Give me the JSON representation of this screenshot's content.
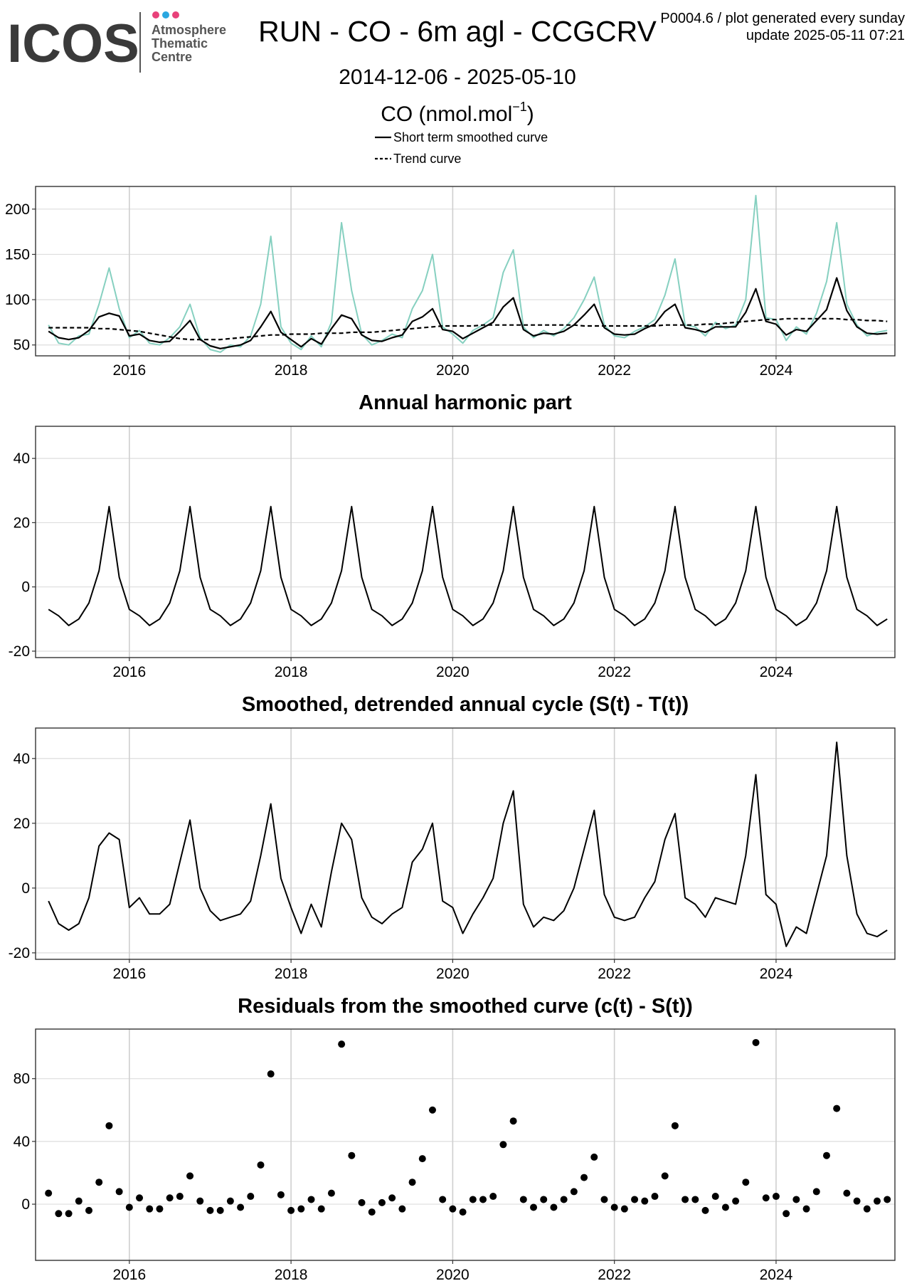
{
  "header": {
    "logo": "ICOS",
    "logo_lines": [
      "Atmosphere",
      "Thematic",
      "Centre"
    ],
    "title": "RUN - CO - 6m agl - CCGCRV",
    "note": "P0004.6 / plot generated every sunday",
    "update": "update  2025-05-11 07:21",
    "subtitle": "2014-12-06 - 2025-05-10"
  },
  "chart_data": [
    {
      "type": "line",
      "title_parts": [
        "CO (nmol.mol",
        "−1",
        ")"
      ],
      "x": [
        2015.0,
        2015.125,
        2015.25,
        2015.375,
        2015.5,
        2015.625,
        2015.75,
        2015.875,
        2016.0,
        2016.125,
        2016.25,
        2016.375,
        2016.5,
        2016.625,
        2016.75,
        2016.875,
        2017.0,
        2017.125,
        2017.25,
        2017.375,
        2017.5,
        2017.625,
        2017.75,
        2017.875,
        2018.0,
        2018.125,
        2018.25,
        2018.375,
        2018.5,
        2018.625,
        2018.75,
        2018.875,
        2019.0,
        2019.125,
        2019.25,
        2019.375,
        2019.5,
        2019.625,
        2019.75,
        2019.875,
        2020.0,
        2020.125,
        2020.25,
        2020.375,
        2020.5,
        2020.625,
        2020.75,
        2020.875,
        2021.0,
        2021.125,
        2021.25,
        2021.375,
        2021.5,
        2021.625,
        2021.75,
        2021.875,
        2022.0,
        2022.125,
        2022.25,
        2022.375,
        2022.5,
        2022.625,
        2022.75,
        2022.875,
        2023.0,
        2023.125,
        2023.25,
        2023.375,
        2023.5,
        2023.625,
        2023.75,
        2023.875,
        2024.0,
        2024.125,
        2024.25,
        2024.375,
        2024.5,
        2024.625,
        2024.75,
        2024.875,
        2025.0,
        2025.125,
        2025.25,
        2025.375
      ],
      "series": [
        {
          "color": "#86d0c0",
          "values": [
            72,
            52,
            50,
            60,
            62,
            95,
            135,
            90,
            58,
            66,
            52,
            50,
            58,
            70,
            95,
            58,
            45,
            42,
            50,
            48,
            60,
            95,
            170,
            70,
            52,
            45,
            60,
            48,
            75,
            185,
            110,
            62,
            50,
            55,
            62,
            58,
            90,
            110,
            150,
            70,
            62,
            52,
            66,
            72,
            80,
            130,
            155,
            70,
            58,
            66,
            60,
            68,
            80,
            100,
            125,
            72,
            60,
            58,
            65,
            70,
            78,
            105,
            145,
            72,
            70,
            60,
            75,
            68,
            72,
            100,
            215,
            80,
            78,
            55,
            70,
            62,
            85,
            120,
            185,
            95,
            72,
            60,
            64,
            66
          ]
        },
        {
          "name": "Short term smoothed curve",
          "color": "#000000",
          "values": [
            65,
            58,
            56,
            58,
            66,
            81,
            85,
            82,
            60,
            62,
            55,
            53,
            54,
            65,
            77,
            56,
            49,
            46,
            48,
            50,
            55,
            70,
            87,
            64,
            56,
            48,
            57,
            51,
            68,
            83,
            79,
            61,
            55,
            54,
            58,
            61,
            76,
            81,
            90,
            67,
            65,
            57,
            63,
            69,
            75,
            92,
            102,
            67,
            60,
            63,
            62,
            65,
            72,
            83,
            95,
            69,
            62,
            61,
            62,
            68,
            73,
            87,
            95,
            69,
            67,
            64,
            70,
            70,
            70,
            86,
            112,
            76,
            73,
            61,
            67,
            65,
            77,
            89,
            124,
            88,
            70,
            63,
            62,
            63
          ]
        },
        {
          "name": "Trend curve",
          "color": "#000000",
          "dashed": true,
          "values": [
            69,
            69,
            69,
            69,
            69,
            68,
            68,
            67,
            66,
            65,
            63,
            61,
            59,
            57,
            56,
            56,
            56,
            56,
            57,
            58,
            59,
            60,
            61,
            61,
            62,
            62,
            62,
            63,
            63,
            63,
            64,
            64,
            64,
            65,
            66,
            67,
            68,
            69,
            70,
            71,
            71,
            71,
            71,
            72,
            72,
            72,
            72,
            72,
            72,
            72,
            72,
            72,
            72,
            71,
            71,
            71,
            71,
            71,
            71,
            71,
            71,
            72,
            72,
            72,
            72,
            73,
            73,
            74,
            75,
            76,
            77,
            78,
            78,
            79,
            79,
            79,
            79,
            79,
            79,
            78,
            78,
            77,
            77,
            76
          ]
        }
      ],
      "xlim": [
        2014.84,
        2025.47
      ],
      "xticks": [
        2016,
        2018,
        2020,
        2022,
        2024
      ],
      "ylim": [
        38,
        225
      ],
      "yticks": [
        50,
        100,
        150,
        200
      ],
      "grid": true
    },
    {
      "type": "line",
      "title": "Annual harmonic part",
      "x": [
        2015.0,
        2015.125,
        2015.25,
        2015.375,
        2015.5,
        2015.625,
        2015.75,
        2015.875,
        2016.0,
        2016.125,
        2016.25,
        2016.375,
        2016.5,
        2016.625,
        2016.75,
        2016.875,
        2017.0,
        2017.125,
        2017.25,
        2017.375,
        2017.5,
        2017.625,
        2017.75,
        2017.875,
        2018.0,
        2018.125,
        2018.25,
        2018.375,
        2018.5,
        2018.625,
        2018.75,
        2018.875,
        2019.0,
        2019.125,
        2019.25,
        2019.375,
        2019.5,
        2019.625,
        2019.75,
        2019.875,
        2020.0,
        2020.125,
        2020.25,
        2020.375,
        2020.5,
        2020.625,
        2020.75,
        2020.875,
        2021.0,
        2021.125,
        2021.25,
        2021.375,
        2021.5,
        2021.625,
        2021.75,
        2021.875,
        2022.0,
        2022.125,
        2022.25,
        2022.375,
        2022.5,
        2022.625,
        2022.75,
        2022.875,
        2023.0,
        2023.125,
        2023.25,
        2023.375,
        2023.5,
        2023.625,
        2023.75,
        2023.875,
        2024.0,
        2024.125,
        2024.25,
        2024.375,
        2024.5,
        2024.625,
        2024.75,
        2024.875,
        2025.0,
        2025.125,
        2025.25,
        2025.375
      ],
      "series": [
        {
          "color": "#000000",
          "values": [
            -7,
            -9,
            -12,
            -10,
            -5,
            5,
            25,
            3,
            -7,
            -9,
            -12,
            -10,
            -5,
            5,
            25,
            3,
            -7,
            -9,
            -12,
            -10,
            -5,
            5,
            25,
            3,
            -7,
            -9,
            -12,
            -10,
            -5,
            5,
            25,
            3,
            -7,
            -9,
            -12,
            -10,
            -5,
            5,
            25,
            3,
            -7,
            -9,
            -12,
            -10,
            -5,
            5,
            25,
            3,
            -7,
            -9,
            -12,
            -10,
            -5,
            5,
            25,
            3,
            -7,
            -9,
            -12,
            -10,
            -5,
            5,
            25,
            3,
            -7,
            -9,
            -12,
            -10,
            -5,
            5,
            25,
            3,
            -7,
            -9,
            -12,
            -10,
            -5,
            5,
            25,
            3,
            -7,
            -9,
            -12,
            -10
          ]
        }
      ],
      "xlim": [
        2014.84,
        2025.47
      ],
      "xticks": [
        2016,
        2018,
        2020,
        2022,
        2024
      ],
      "ylim": [
        -22,
        50
      ],
      "yticks": [
        -20,
        0,
        20,
        40
      ],
      "grid": true
    },
    {
      "type": "line",
      "title": "Smoothed, detrended annual cycle (S(t) - T(t))",
      "x": [
        2015.0,
        2015.125,
        2015.25,
        2015.375,
        2015.5,
        2015.625,
        2015.75,
        2015.875,
        2016.0,
        2016.125,
        2016.25,
        2016.375,
        2016.5,
        2016.625,
        2016.75,
        2016.875,
        2017.0,
        2017.125,
        2017.25,
        2017.375,
        2017.5,
        2017.625,
        2017.75,
        2017.875,
        2018.0,
        2018.125,
        2018.25,
        2018.375,
        2018.5,
        2018.625,
        2018.75,
        2018.875,
        2019.0,
        2019.125,
        2019.25,
        2019.375,
        2019.5,
        2019.625,
        2019.75,
        2019.875,
        2020.0,
        2020.125,
        2020.25,
        2020.375,
        2020.5,
        2020.625,
        2020.75,
        2020.875,
        2021.0,
        2021.125,
        2021.25,
        2021.375,
        2021.5,
        2021.625,
        2021.75,
        2021.875,
        2022.0,
        2022.125,
        2022.25,
        2022.375,
        2022.5,
        2022.625,
        2022.75,
        2022.875,
        2023.0,
        2023.125,
        2023.25,
        2023.375,
        2023.5,
        2023.625,
        2023.75,
        2023.875,
        2024.0,
        2024.125,
        2024.25,
        2024.375,
        2024.5,
        2024.625,
        2024.75,
        2024.875,
        2025.0,
        2025.125,
        2025.25,
        2025.375
      ],
      "series": [
        {
          "color": "#000000",
          "values": [
            -4,
            -11,
            -13,
            -11,
            -3,
            13,
            17,
            15,
            -6,
            -3,
            -8,
            -8,
            -5,
            8,
            21,
            0,
            -7,
            -10,
            -9,
            -8,
            -4,
            10,
            26,
            3,
            -6,
            -14,
            -5,
            -12,
            5,
            20,
            15,
            -3,
            -9,
            -11,
            -8,
            -6,
            8,
            12,
            20,
            -4,
            -6,
            -14,
            -8,
            -3,
            3,
            20,
            30,
            -5,
            -12,
            -9,
            -10,
            -7,
            0,
            12,
            24,
            -2,
            -9,
            -10,
            -9,
            -3,
            2,
            15,
            23,
            -3,
            -5,
            -9,
            -3,
            -4,
            -5,
            10,
            35,
            -2,
            -5,
            -18,
            -12,
            -14,
            -2,
            10,
            45,
            10,
            -8,
            -14,
            -15,
            -13
          ]
        }
      ],
      "xlim": [
        2014.84,
        2025.47
      ],
      "xticks": [
        2016,
        2018,
        2020,
        2022,
        2024
      ],
      "ylim": [
        -22,
        49.4
      ],
      "yticks": [
        -20,
        0,
        20,
        40
      ],
      "grid": true
    },
    {
      "type": "scatter",
      "title": "Residuals from the smoothed curve (c(t) - S(t))",
      "x": [
        2015.0,
        2015.125,
        2015.25,
        2015.375,
        2015.5,
        2015.625,
        2015.75,
        2015.875,
        2016.0,
        2016.125,
        2016.25,
        2016.375,
        2016.5,
        2016.625,
        2016.75,
        2016.875,
        2017.0,
        2017.125,
        2017.25,
        2017.375,
        2017.5,
        2017.625,
        2017.75,
        2017.875,
        2018.0,
        2018.125,
        2018.25,
        2018.375,
        2018.5,
        2018.625,
        2018.75,
        2018.875,
        2019.0,
        2019.125,
        2019.25,
        2019.375,
        2019.5,
        2019.625,
        2019.75,
        2019.875,
        2020.0,
        2020.125,
        2020.25,
        2020.375,
        2020.5,
        2020.625,
        2020.75,
        2020.875,
        2021.0,
        2021.125,
        2021.25,
        2021.375,
        2021.5,
        2021.625,
        2021.75,
        2021.875,
        2022.0,
        2022.125,
        2022.25,
        2022.375,
        2022.5,
        2022.625,
        2022.75,
        2022.875,
        2023.0,
        2023.125,
        2023.25,
        2023.375,
        2023.5,
        2023.625,
        2023.75,
        2023.875,
        2024.0,
        2024.125,
        2024.25,
        2024.375,
        2024.5,
        2024.625,
        2024.75,
        2024.875,
        2025.0,
        2025.125,
        2025.25,
        2025.375
      ],
      "series": [
        {
          "color": "#000000",
          "values": [
            7,
            -6,
            -6,
            2,
            -4,
            14,
            50,
            8,
            -2,
            4,
            -3,
            -3,
            4,
            5,
            18,
            2,
            -4,
            -4,
            2,
            -2,
            5,
            25,
            83,
            6,
            -4,
            -3,
            3,
            -3,
            7,
            102,
            31,
            1,
            -5,
            1,
            4,
            -3,
            14,
            29,
            60,
            3,
            -3,
            -5,
            3,
            3,
            5,
            38,
            53,
            3,
            -2,
            3,
            -2,
            3,
            8,
            17,
            30,
            3,
            -2,
            -3,
            3,
            2,
            5,
            18,
            50,
            3,
            3,
            -4,
            5,
            -2,
            2,
            14,
            103,
            4,
            5,
            -6,
            3,
            -3,
            8,
            31,
            61,
            7,
            2,
            -3,
            2,
            3
          ]
        }
      ],
      "xlim": [
        2014.84,
        2025.47
      ],
      "xticks": [
        2016,
        2018,
        2020,
        2022,
        2024
      ],
      "ylim": [
        -35.8,
        111.6
      ],
      "yticks": [
        0,
        40,
        80
      ],
      "grid": true
    }
  ]
}
